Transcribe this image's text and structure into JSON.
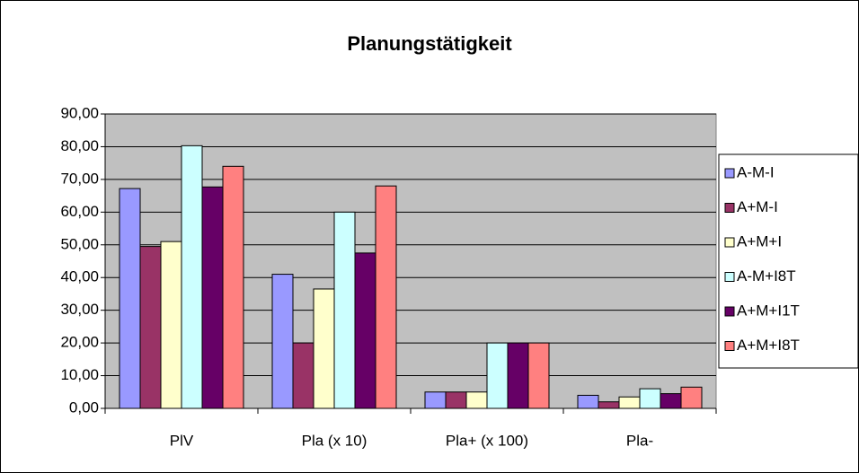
{
  "chart_data": {
    "type": "bar",
    "title": "Planungstätigkeit",
    "categories": [
      "PlV",
      "Pla (x 10)",
      "Pla+ (x 100)",
      "Pla-"
    ],
    "series": [
      {
        "name": "A-M-I",
        "color": "#9999ff",
        "values": [
          67.2,
          41,
          5,
          4
        ]
      },
      {
        "name": "A+M-I",
        "color": "#993366",
        "values": [
          49.5,
          20,
          5,
          2
        ]
      },
      {
        "name": "A+M+I",
        "color": "#ffffcc",
        "values": [
          51,
          36.5,
          5,
          3.5
        ]
      },
      {
        "name": "A-M+I8T",
        "color": "#ccffff",
        "values": [
          80.3,
          60,
          20,
          6
        ]
      },
      {
        "name": "A+M+I1T",
        "color": "#660066",
        "values": [
          67.7,
          47.5,
          20,
          4.5
        ]
      },
      {
        "name": "A+M+I8T",
        "color": "#ff8080",
        "values": [
          74,
          68,
          20,
          6.5
        ]
      }
    ],
    "ylim": [
      0,
      90
    ],
    "yticks": [
      {
        "value": 0,
        "label": "0,00"
      },
      {
        "value": 10,
        "label": "10,00"
      },
      {
        "value": 20,
        "label": "20,00"
      },
      {
        "value": 30,
        "label": "30,00"
      },
      {
        "value": 40,
        "label": "40,00"
      },
      {
        "value": 50,
        "label": "50,00"
      },
      {
        "value": 60,
        "label": "60,00"
      },
      {
        "value": 70,
        "label": "70,00"
      },
      {
        "value": 80,
        "label": "80,00"
      },
      {
        "value": 90,
        "label": "90,00"
      }
    ],
    "grid": true,
    "legend": "right",
    "plot_background": "#c0c0c0"
  }
}
